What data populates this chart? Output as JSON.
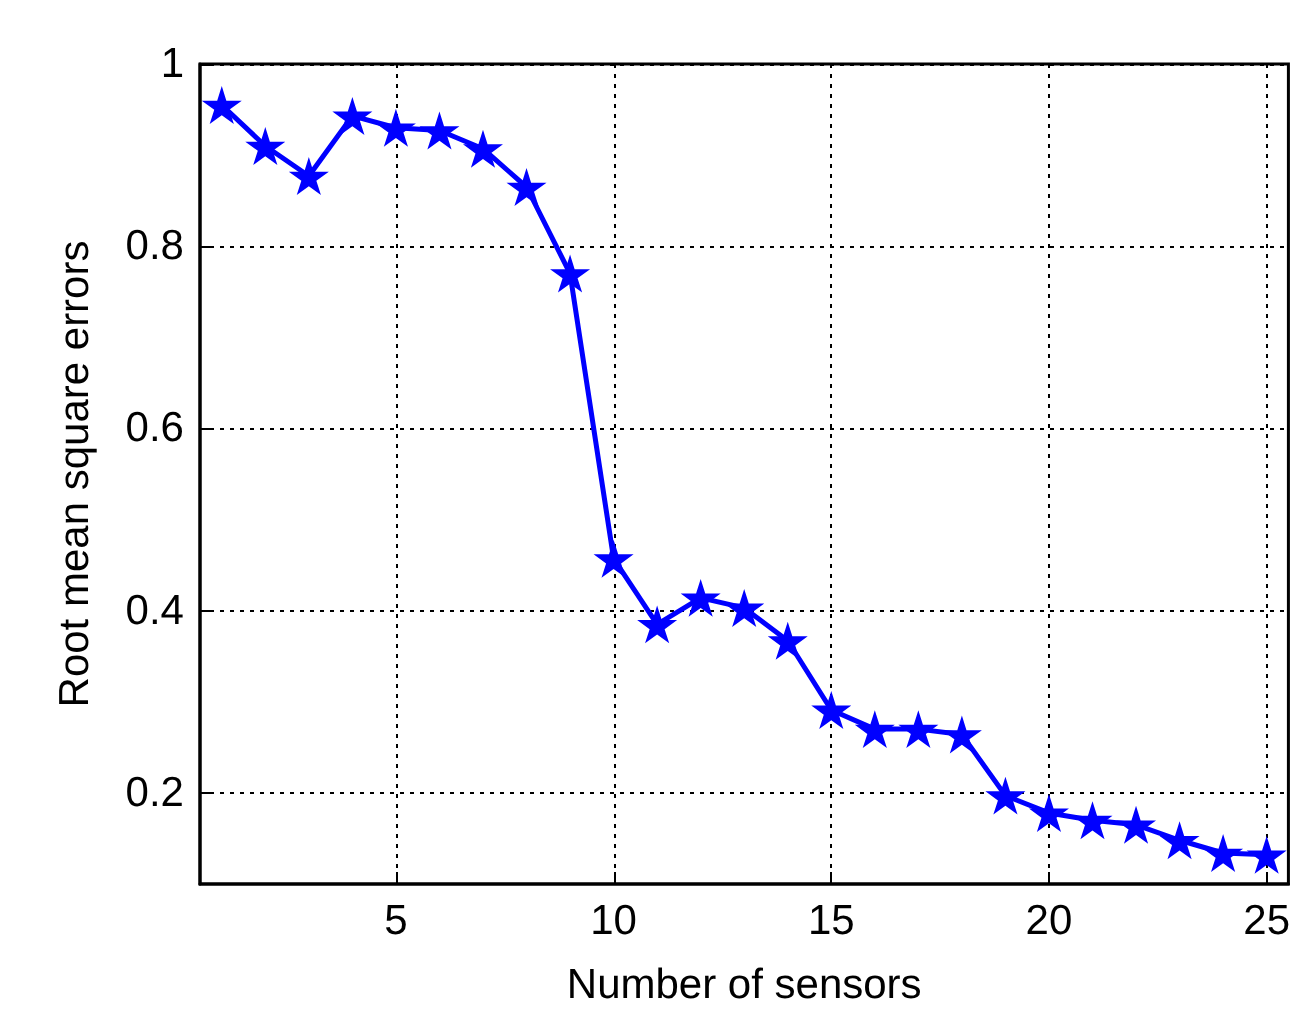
{
  "chart_data": {
    "type": "line",
    "xlabel": "Number of sensors",
    "ylabel": "Root mean square errors",
    "x": [
      1,
      2,
      3,
      4,
      5,
      6,
      7,
      8,
      9,
      10,
      11,
      12,
      13,
      14,
      15,
      16,
      17,
      18,
      19,
      20,
      21,
      22,
      23,
      24,
      25
    ],
    "series": [
      {
        "color": "#0000ff",
        "values": [
          0.955,
          0.91,
          0.877,
          0.943,
          0.93,
          0.927,
          0.907,
          0.865,
          0.77,
          0.457,
          0.385,
          0.414,
          0.403,
          0.367,
          0.291,
          0.27,
          0.27,
          0.264,
          0.197,
          0.178,
          0.17,
          0.165,
          0.148,
          0.134,
          0.132
        ]
      }
    ],
    "xlim": [
      0.5,
      25.5
    ],
    "xticks": [
      5,
      10,
      15,
      20,
      25
    ],
    "ylim": [
      0.1,
      1
    ],
    "yticks": [
      0.2,
      0.4,
      0.6,
      0.8,
      1
    ],
    "grid": true,
    "marker": "star",
    "line_style": "solid"
  }
}
